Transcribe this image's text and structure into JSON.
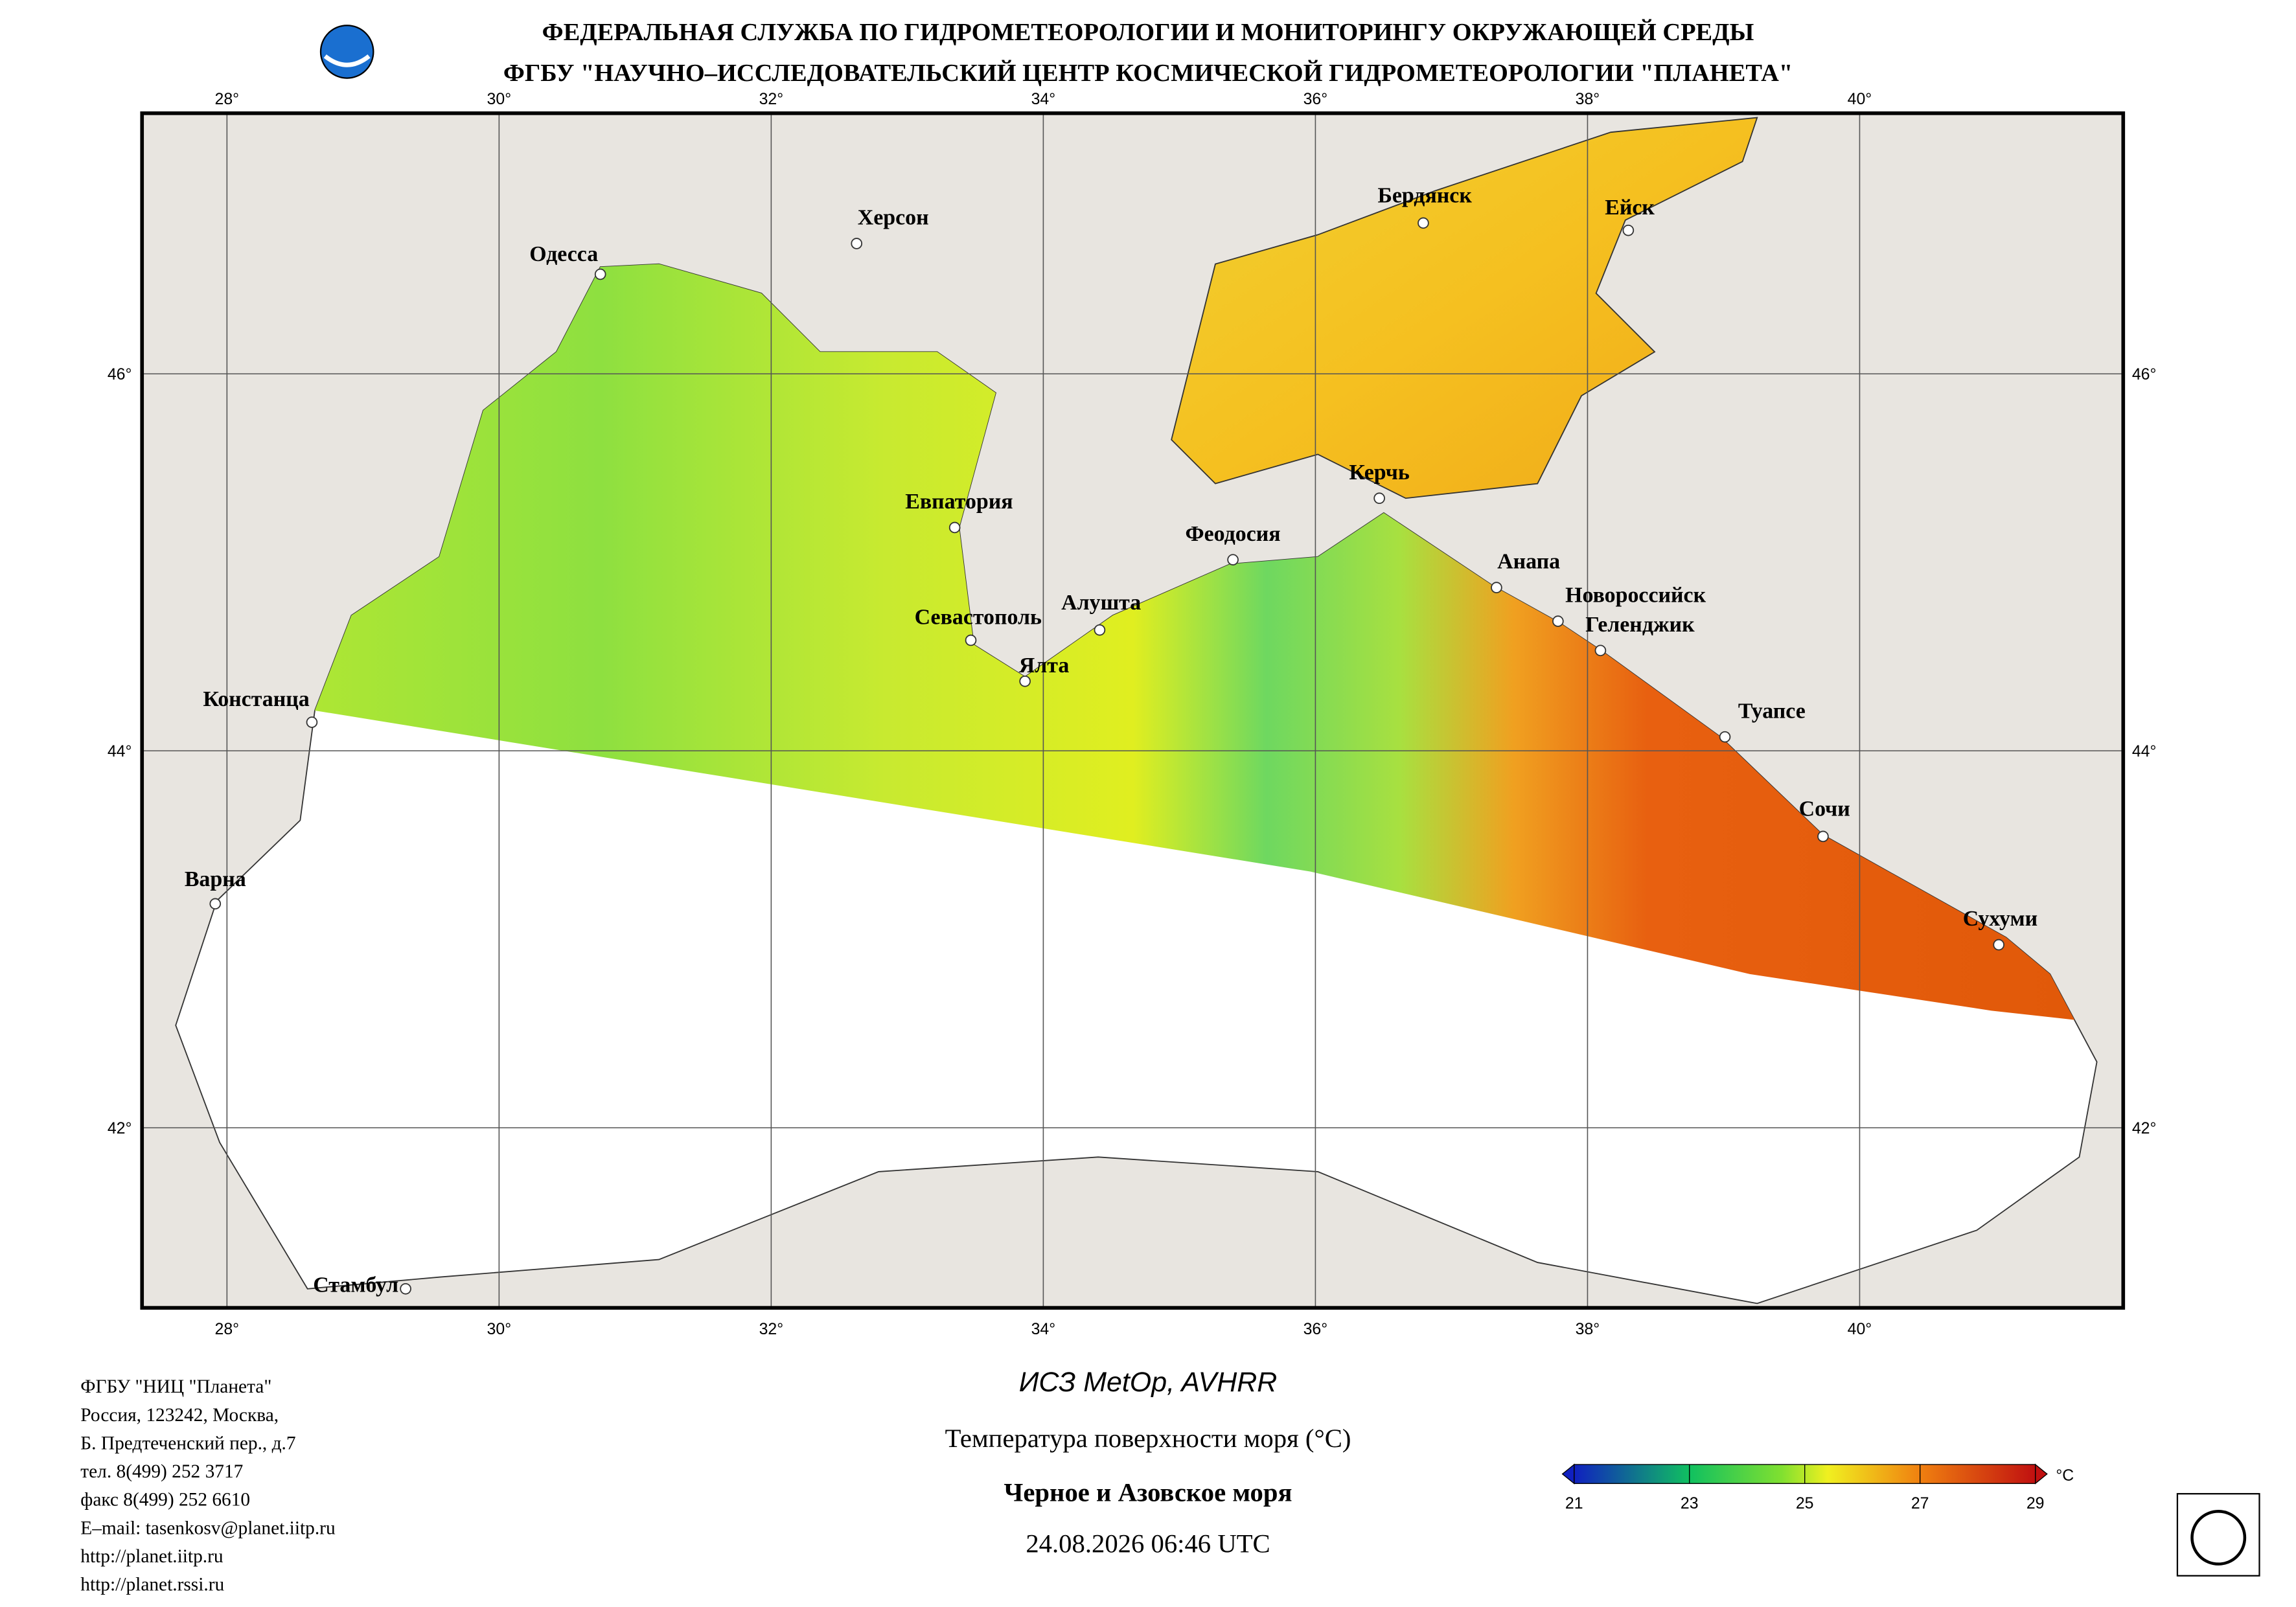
{
  "header": {
    "line1": "ФЕДЕРАЛЬНАЯ СЛУЖБА ПО ГИДРОМЕТЕОРОЛОГИИ И МОНИТОРИНГУ ОКРУЖАЮЩЕЙ СРЕДЫ",
    "line2": "ФГБУ \"НАУЧНО–ИССЛЕДОВАТЕЛЬСКИЙ ЦЕНТР КОСМИЧЕСКОЙ ГИДРОМЕТЕОРОЛОГИИ \"ПЛАНЕТА\""
  },
  "map": {
    "lon_ticks": [
      {
        "value": 28,
        "label": "28°"
      },
      {
        "value": 30,
        "label": "30°"
      },
      {
        "value": 32,
        "label": "32°"
      },
      {
        "value": 34,
        "label": "34°"
      },
      {
        "value": 36,
        "label": "36°"
      },
      {
        "value": 38,
        "label": "38°"
      },
      {
        "value": 40,
        "label": "40°"
      }
    ],
    "lat_ticks": [
      {
        "value": 46,
        "label": "46°"
      },
      {
        "value": 44,
        "label": "44°"
      },
      {
        "value": 42,
        "label": "42°"
      }
    ],
    "cities": [
      "Одесса",
      "Херсон",
      "Бердянск",
      "Ейск",
      "Евпатория",
      "Феодосия",
      "Керчь",
      "Анапа",
      "Новороссийск",
      "Геленджик",
      "Алушта",
      "Севастополь",
      "Ялта",
      "Констанца",
      "Туапсе",
      "Сочи",
      "Варна",
      "Сухуми",
      "Стамбул"
    ]
  },
  "footer": {
    "address": [
      "ФГБУ \"НИЦ \"Планета\"",
      "Россия, 123242, Москва,",
      "Б. Предтеченский пер., д.7",
      "тел. 8(499) 252 3717",
      "факс 8(499) 252 6610",
      "E–mail: tasenkosv@planet.iitp.ru",
      "http://planet.iitp.ru",
      "http://planet.rssi.ru"
    ],
    "satellite": "ИСЗ MetOp, AVHRR",
    "product": "Температура поверхности моря (°C)",
    "region": "Черное и Азовское моря",
    "datetime": "24.08.2026 06:46 UTC"
  },
  "colorbar": {
    "ticks": [
      21,
      23,
      25,
      27,
      29
    ],
    "unit": "°C"
  }
}
